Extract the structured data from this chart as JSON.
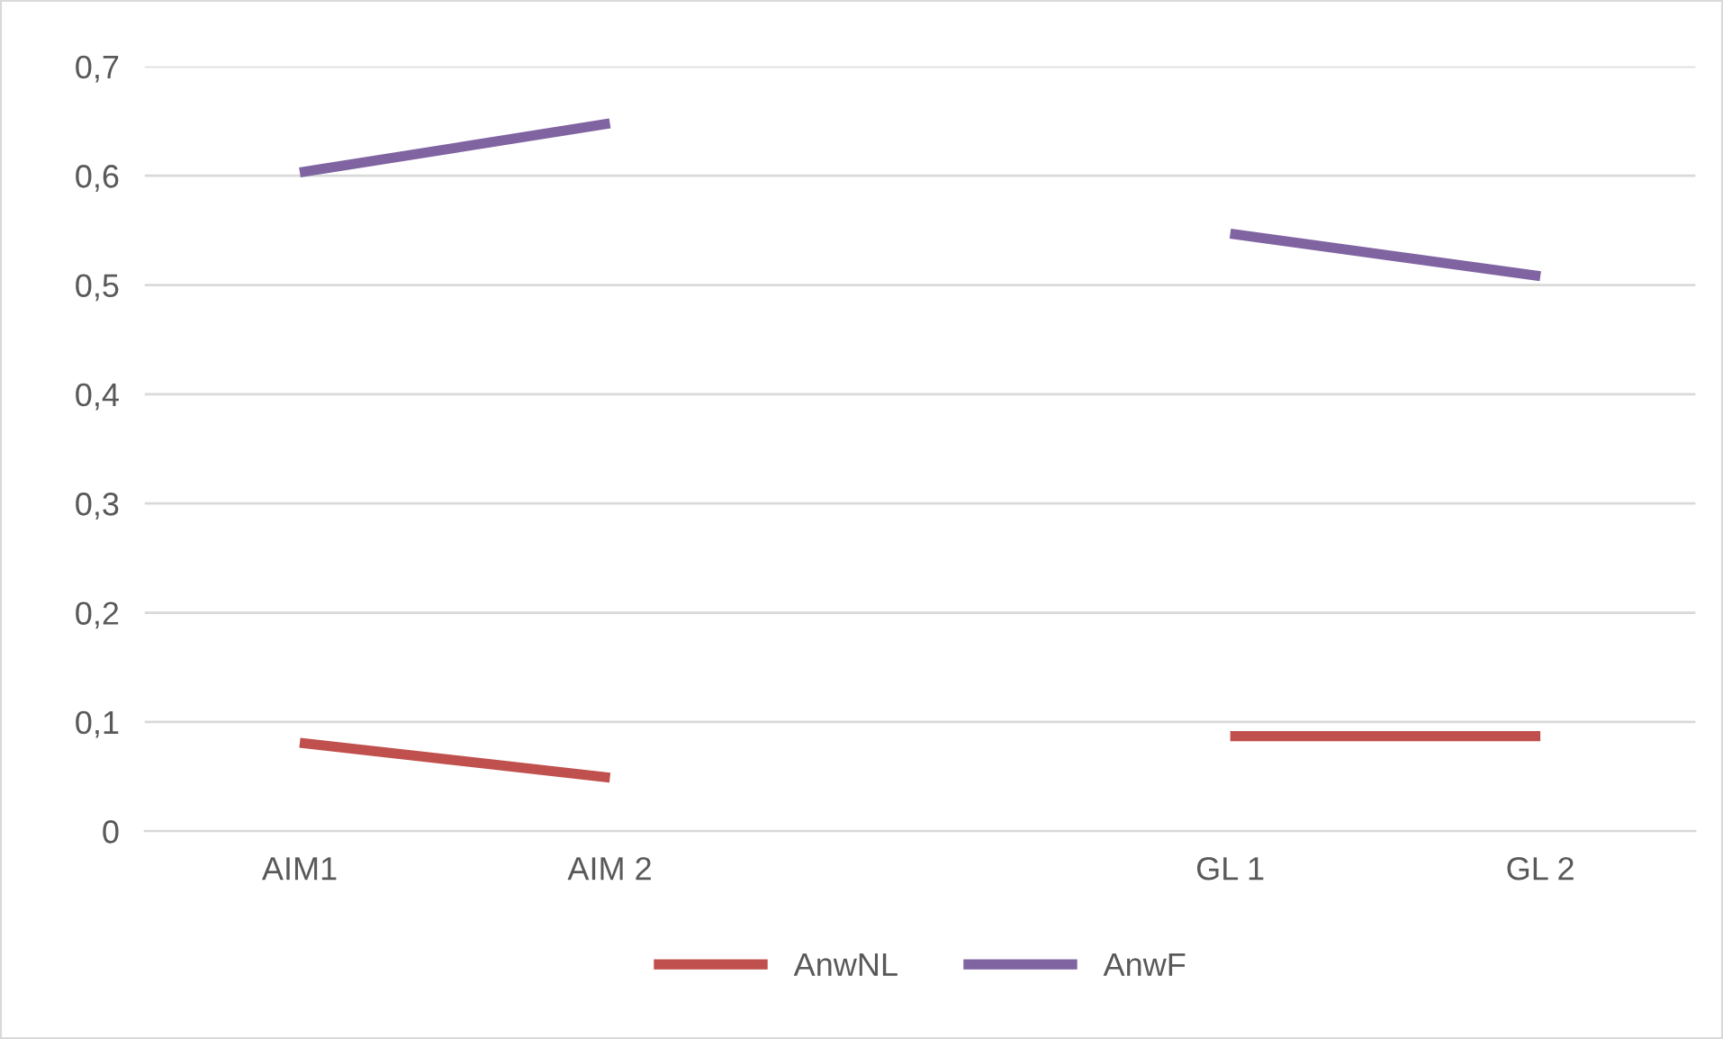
{
  "chart_data": {
    "type": "line",
    "categories": [
      "AIM1",
      "AIM 2",
      null,
      "GL 1",
      "GL 2"
    ],
    "series": [
      {
        "name": "AnwNL",
        "color": "#c0504d",
        "values": [
          0.081,
          0.049,
          null,
          0.087,
          0.087
        ]
      },
      {
        "name": "AnwF",
        "color": "#8064a2",
        "values": [
          0.603,
          0.648,
          null,
          0.547,
          0.508
        ]
      }
    ],
    "ylim": [
      0,
      0.7
    ],
    "yticks": [
      {
        "value": 0,
        "label": "0"
      },
      {
        "value": 0.1,
        "label": "0,1"
      },
      {
        "value": 0.2,
        "label": "0,2"
      },
      {
        "value": 0.3,
        "label": "0,3"
      },
      {
        "value": 0.4,
        "label": "0,4"
      },
      {
        "value": 0.5,
        "label": "0,5"
      },
      {
        "value": 0.6,
        "label": "0,6"
      },
      {
        "value": 0.7,
        "label": "0,7"
      }
    ],
    "grid": "y",
    "legend": "bottom",
    "marker": "none",
    "line_style": "solid"
  }
}
